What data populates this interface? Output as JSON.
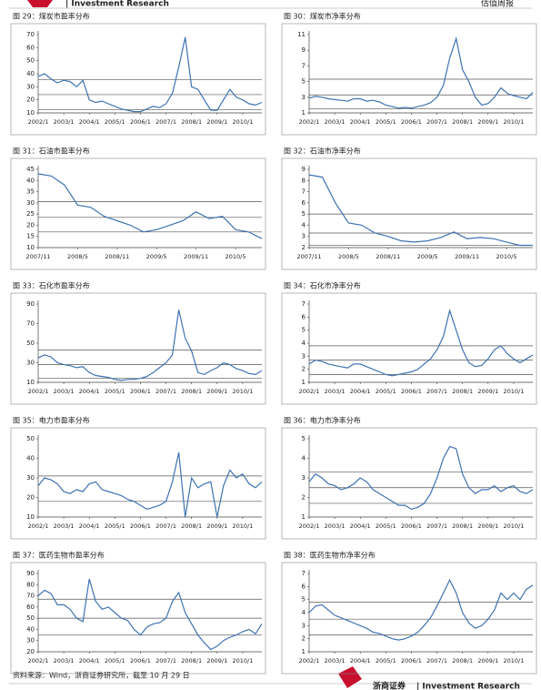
{
  "header": {
    "left": "| Investment Research",
    "right": "估值周报"
  },
  "chart_data": [
    {
      "type": "line",
      "title": "图 29：煤炭市盈率分布",
      "color": "#3f72b0",
      "x": [
        "2002/1",
        "2002/4",
        "2002/7",
        "2002/10",
        "2003/1",
        "2003/4",
        "2003/7",
        "2003/10",
        "2004/1",
        "2004/4",
        "2004/7",
        "2004/10",
        "2005/1",
        "2005/4",
        "2005/7",
        "2005/10",
        "2006/1",
        "2006/4",
        "2006/7",
        "2006/10",
        "2007/1",
        "2007/4",
        "2007/7",
        "2007/10",
        "2008/1",
        "2008/4",
        "2008/7",
        "2008/10",
        "2009/1",
        "2009/4",
        "2009/7",
        "2009/10",
        "2010/1",
        "2010/4",
        "2010/7",
        "2010/10"
      ],
      "values": [
        38,
        40,
        36,
        33,
        35,
        34,
        30,
        35,
        20,
        18,
        19,
        17,
        15,
        13,
        12,
        11,
        11,
        13,
        15,
        14,
        17,
        25,
        45,
        68,
        30,
        28,
        20,
        12,
        12,
        20,
        28,
        22,
        20,
        17,
        16,
        18
      ],
      "ylim": [
        10,
        70
      ],
      "yticks": [
        10,
        20,
        30,
        40,
        50,
        60,
        70
      ],
      "xticks": [
        "2002/1",
        "2003/1",
        "2004/1",
        "2005/1",
        "2006/1",
        "2007/1",
        "2008/1",
        "2009/1",
        "2010/1"
      ],
      "hlines": [
        35.5,
        24,
        12.5
      ]
    },
    {
      "type": "line",
      "title": "图 30：煤炭市净率分布",
      "color": "#3f72b0",
      "x": [
        "2002/1",
        "2002/4",
        "2002/7",
        "2002/10",
        "2003/1",
        "2003/4",
        "2003/7",
        "2003/10",
        "2004/1",
        "2004/4",
        "2004/7",
        "2004/10",
        "2005/1",
        "2005/4",
        "2005/7",
        "2005/10",
        "2006/1",
        "2006/4",
        "2006/7",
        "2006/10",
        "2007/1",
        "2007/4",
        "2007/7",
        "2007/10",
        "2008/1",
        "2008/4",
        "2008/7",
        "2008/10",
        "2009/1",
        "2009/4",
        "2009/7",
        "2009/10",
        "2010/1",
        "2010/4",
        "2010/7",
        "2010/10"
      ],
      "values": [
        2.9,
        3.1,
        3.0,
        2.8,
        2.7,
        2.6,
        2.5,
        2.8,
        2.8,
        2.5,
        2.6,
        2.4,
        2.0,
        1.8,
        1.6,
        1.7,
        1.6,
        1.8,
        2.0,
        2.3,
        3.0,
        4.5,
        8.0,
        10.5,
        6.5,
        5.0,
        3.0,
        2.0,
        2.2,
        3.0,
        4.2,
        3.5,
        3.2,
        3.0,
        2.8,
        3.6
      ],
      "ylim": [
        1,
        11
      ],
      "yticks": [
        1,
        3,
        5,
        7,
        9,
        11
      ],
      "xticks": [
        "2002/1",
        "2003/1",
        "2004/1",
        "2005/1",
        "2006/1",
        "2007/1",
        "2008/1",
        "2009/1",
        "2010/1"
      ],
      "hlines": [
        5.3,
        3.3,
        1.5
      ]
    },
    {
      "type": "line",
      "title": "图 31：石油市盈率分布",
      "color": "#3f72b0",
      "x": [
        "2007/11",
        "2008/1",
        "2008/3",
        "2008/5",
        "2008/7",
        "2008/9",
        "2008/11",
        "2009/1",
        "2009/3",
        "2009/5",
        "2009/7",
        "2009/9",
        "2009/11",
        "2010/1",
        "2010/3",
        "2010/5",
        "2010/7",
        "2010/9"
      ],
      "values": [
        43,
        42,
        38,
        29,
        28,
        24,
        22,
        20,
        17,
        18,
        20,
        22,
        26,
        23,
        24,
        18,
        17,
        14
      ],
      "ylim": [
        10,
        45
      ],
      "yticks": [
        10,
        15,
        20,
        25,
        30,
        35,
        40,
        45
      ],
      "xticks": [
        "2007/11",
        "2008/5",
        "2008/11",
        "2009/5",
        "2009/11",
        "2010/5"
      ],
      "hlines": [
        30.5,
        23.5,
        17
      ]
    },
    {
      "type": "line",
      "title": "图 32：石油市净率分布",
      "color": "#3f72b0",
      "x": [
        "2007/11",
        "2008/1",
        "2008/3",
        "2008/5",
        "2008/7",
        "2008/9",
        "2008/11",
        "2009/1",
        "2009/3",
        "2009/5",
        "2009/7",
        "2009/9",
        "2009/11",
        "2010/1",
        "2010/3",
        "2010/5",
        "2010/7",
        "2010/9"
      ],
      "values": [
        8.5,
        8.3,
        6,
        4.2,
        4.0,
        3.3,
        3.0,
        2.6,
        2.5,
        2.6,
        2.9,
        3.4,
        2.8,
        2.9,
        2.8,
        2.5,
        2.2,
        2.2
      ],
      "ylim": [
        2,
        9
      ],
      "yticks": [
        2,
        3,
        4,
        5,
        6,
        7,
        8,
        9
      ],
      "xticks": [
        "2007/11",
        "2008/5",
        "2008/11",
        "2009/5",
        "2009/11",
        "2010/5"
      ],
      "hlines": [
        5.0,
        3.3,
        2.2
      ]
    },
    {
      "type": "line",
      "title": "图 33：石化市盈率分布",
      "color": "#3f72b0",
      "x": [
        "2002/1",
        "2002/4",
        "2002/7",
        "2002/10",
        "2003/1",
        "2003/4",
        "2003/7",
        "2003/10",
        "2004/1",
        "2004/4",
        "2004/7",
        "2004/10",
        "2005/1",
        "2005/4",
        "2005/7",
        "2005/10",
        "2006/1",
        "2006/4",
        "2006/7",
        "2006/10",
        "2007/1",
        "2007/4",
        "2007/7",
        "2007/10",
        "2008/1",
        "2008/4",
        "2008/7",
        "2008/10",
        "2009/1",
        "2009/4",
        "2009/7",
        "2009/10",
        "2010/1",
        "2010/4",
        "2010/7",
        "2010/10"
      ],
      "values": [
        35,
        38,
        36,
        30,
        28,
        27,
        25,
        26,
        20,
        17,
        16,
        15,
        13,
        12,
        13,
        13,
        14,
        16,
        20,
        25,
        30,
        38,
        84,
        55,
        42,
        20,
        18,
        22,
        25,
        30,
        28,
        24,
        22,
        19,
        18,
        22
      ],
      "ylim": [
        10,
        90
      ],
      "yticks": [
        10,
        30,
        50,
        70,
        90
      ],
      "xticks": [
        "2002/1",
        "2003/1",
        "2004/1",
        "2005/1",
        "2006/1",
        "2007/1",
        "2008/1",
        "2009/1",
        "2010/1"
      ],
      "hlines": [
        43,
        28,
        14
      ]
    },
    {
      "type": "line",
      "title": "图 34：石化市净率分布",
      "color": "#3f72b0",
      "x": [
        "2002/1",
        "2002/4",
        "2002/7",
        "2002/10",
        "2003/1",
        "2003/4",
        "2003/7",
        "2003/10",
        "2004/1",
        "2004/4",
        "2004/7",
        "2004/10",
        "2005/1",
        "2005/4",
        "2005/7",
        "2005/10",
        "2006/1",
        "2006/4",
        "2006/7",
        "2006/10",
        "2007/1",
        "2007/4",
        "2007/7",
        "2007/10",
        "2008/1",
        "2008/4",
        "2008/7",
        "2008/10",
        "2009/1",
        "2009/4",
        "2009/7",
        "2009/10",
        "2010/1",
        "2010/4",
        "2010/7",
        "2010/10"
      ],
      "values": [
        2.4,
        2.7,
        2.6,
        2.4,
        2.3,
        2.2,
        2.1,
        2.4,
        2.4,
        2.2,
        2.0,
        1.8,
        1.6,
        1.5,
        1.6,
        1.7,
        1.8,
        2.0,
        2.4,
        2.8,
        3.5,
        4.5,
        6.5,
        5.0,
        3.5,
        2.5,
        2.2,
        2.3,
        2.8,
        3.5,
        3.8,
        3.2,
        2.8,
        2.5,
        2.8,
        3.1
      ],
      "ylim": [
        1,
        7
      ],
      "yticks": [
        1,
        2,
        3,
        4,
        5,
        6,
        7
      ],
      "xticks": [
        "2002/1",
        "2003/1",
        "2004/1",
        "2005/1",
        "2006/1",
        "2007/1",
        "2008/1",
        "2009/1",
        "2010/1"
      ],
      "hlines": [
        3.8,
        2.7,
        1.6
      ]
    },
    {
      "type": "line",
      "title": "图 35：电力市盈率分布",
      "color": "#3f72b0",
      "x": [
        "2002/1",
        "2002/4",
        "2002/7",
        "2002/10",
        "2003/1",
        "2003/4",
        "2003/7",
        "2003/10",
        "2004/1",
        "2004/4",
        "2004/7",
        "2004/10",
        "2005/1",
        "2005/4",
        "2005/7",
        "2005/10",
        "2006/1",
        "2006/4",
        "2006/7",
        "2006/10",
        "2007/1",
        "2007/4",
        "2007/7",
        "2007/10",
        "2008/1",
        "2008/4",
        "2008/7",
        "2008/10",
        "2009/1",
        "2009/4",
        "2009/7",
        "2009/10",
        "2010/1",
        "2010/4",
        "2010/7",
        "2010/10"
      ],
      "values": [
        26,
        30,
        29,
        27,
        23,
        22,
        24,
        23,
        27,
        28,
        24,
        23,
        22,
        21,
        19,
        18,
        16,
        14,
        15,
        16,
        18,
        28,
        43,
        10,
        30,
        25,
        27,
        28,
        10,
        26,
        34,
        30,
        32,
        27,
        25,
        28
      ],
      "ylim": [
        10,
        50
      ],
      "yticks": [
        10,
        20,
        30,
        40,
        50
      ],
      "xticks": [
        "2002/1",
        "2003/1",
        "2004/1",
        "2005/1",
        "2006/1",
        "2007/1",
        "2008/1",
        "2009/1",
        "2010/1"
      ],
      "hlines": [
        31,
        18
      ]
    },
    {
      "type": "line",
      "title": "图 36：电力市净率分布",
      "color": "#3f72b0",
      "x": [
        "2002/1",
        "2002/4",
        "2002/7",
        "2002/10",
        "2003/1",
        "2003/4",
        "2003/7",
        "2003/10",
        "2004/1",
        "2004/4",
        "2004/7",
        "2004/10",
        "2005/1",
        "2005/4",
        "2005/7",
        "2005/10",
        "2006/1",
        "2006/4",
        "2006/7",
        "2006/10",
        "2007/1",
        "2007/4",
        "2007/7",
        "2007/10",
        "2008/1",
        "2008/4",
        "2008/7",
        "2008/10",
        "2009/1",
        "2009/4",
        "2009/7",
        "2009/10",
        "2010/1",
        "2010/4",
        "2010/7",
        "2010/10"
      ],
      "values": [
        2.8,
        3.2,
        3.0,
        2.7,
        2.6,
        2.4,
        2.5,
        2.7,
        3.0,
        2.8,
        2.4,
        2.2,
        2.0,
        1.8,
        1.6,
        1.6,
        1.4,
        1.5,
        1.7,
        2.2,
        3.0,
        4.0,
        4.6,
        4.5,
        3.2,
        2.5,
        2.2,
        2.4,
        2.4,
        2.6,
        2.3,
        2.5,
        2.6,
        2.3,
        2.2,
        2.4
      ],
      "ylim": [
        1,
        5
      ],
      "yticks": [
        1,
        2,
        3,
        4,
        5
      ],
      "xticks": [
        "2002/1",
        "2003/1",
        "2004/1",
        "2005/1",
        "2006/1",
        "2007/1",
        "2008/1",
        "2009/1",
        "2010/1"
      ],
      "hlines": [
        3.3,
        2.5,
        1.7
      ]
    },
    {
      "type": "line",
      "title": "图 37：医药生物市盈率分布",
      "color": "#3f72b0",
      "x": [
        "2002/1",
        "2002/4",
        "2002/7",
        "2002/10",
        "2003/1",
        "2003/4",
        "2003/7",
        "2003/10",
        "2004/1",
        "2004/4",
        "2004/7",
        "2004/10",
        "2005/1",
        "2005/4",
        "2005/7",
        "2005/10",
        "2006/1",
        "2006/4",
        "2006/7",
        "2006/10",
        "2007/1",
        "2007/4",
        "2007/7",
        "2007/10",
        "2008/1",
        "2008/4",
        "2008/7",
        "2008/10",
        "2009/1",
        "2009/4",
        "2009/7",
        "2009/10",
        "2010/1",
        "2010/4",
        "2010/7",
        "2010/10"
      ],
      "values": [
        70,
        75,
        72,
        62,
        62,
        58,
        50,
        47,
        85,
        65,
        58,
        60,
        55,
        50,
        48,
        40,
        35,
        42,
        45,
        46,
        50,
        65,
        73,
        55,
        45,
        35,
        28,
        22,
        25,
        30,
        33,
        35,
        38,
        40,
        36,
        45
      ],
      "ylim": [
        20,
        90
      ],
      "yticks": [
        20,
        30,
        40,
        50,
        60,
        70,
        80,
        90
      ],
      "xticks": [
        "2002/1",
        "2003/1",
        "2004/1",
        "2005/1",
        "2006/1",
        "2007/1",
        "2008/1",
        "2009/1",
        "2010/1"
      ],
      "hlines": [
        67,
        50,
        35
      ]
    },
    {
      "type": "line",
      "title": "图 38：医药生物市净率分布",
      "color": "#3f72b0",
      "x": [
        "2002/1",
        "2002/4",
        "2002/7",
        "2002/10",
        "2003/1",
        "2003/4",
        "2003/7",
        "2003/10",
        "2004/1",
        "2004/4",
        "2004/7",
        "2004/10",
        "2005/1",
        "2005/4",
        "2005/7",
        "2005/10",
        "2006/1",
        "2006/4",
        "2006/7",
        "2006/10",
        "2007/1",
        "2007/4",
        "2007/7",
        "2007/10",
        "2008/1",
        "2008/4",
        "2008/7",
        "2008/10",
        "2009/1",
        "2009/4",
        "2009/7",
        "2009/10",
        "2010/1",
        "2010/4",
        "2010/7",
        "2010/10"
      ],
      "values": [
        4.0,
        4.5,
        4.6,
        4.2,
        3.8,
        3.6,
        3.4,
        3.2,
        3.0,
        2.8,
        2.5,
        2.4,
        2.2,
        2.0,
        1.9,
        2.0,
        2.2,
        2.5,
        3.0,
        3.6,
        4.5,
        5.5,
        6.5,
        5.5,
        4.0,
        3.2,
        2.8,
        3.0,
        3.5,
        4.2,
        5.5,
        5.0,
        5.5,
        5.0,
        5.8,
        6.1
      ],
      "ylim": [
        1,
        7
      ],
      "yticks": [
        1,
        2,
        3,
        4,
        5,
        6,
        7
      ],
      "xticks": [
        "2002/1",
        "2003/1",
        "2004/1",
        "2005/1",
        "2006/1",
        "2007/1",
        "2008/1",
        "2009/1",
        "2010/1"
      ],
      "hlines": [
        4.8,
        3.5,
        2.3
      ]
    }
  ],
  "footer": {
    "source": "资料来源：Wind，浙商证券研究所，截至 10 月 29 日",
    "brand": "浙商证券",
    "brand_en": "| Investment Research"
  }
}
